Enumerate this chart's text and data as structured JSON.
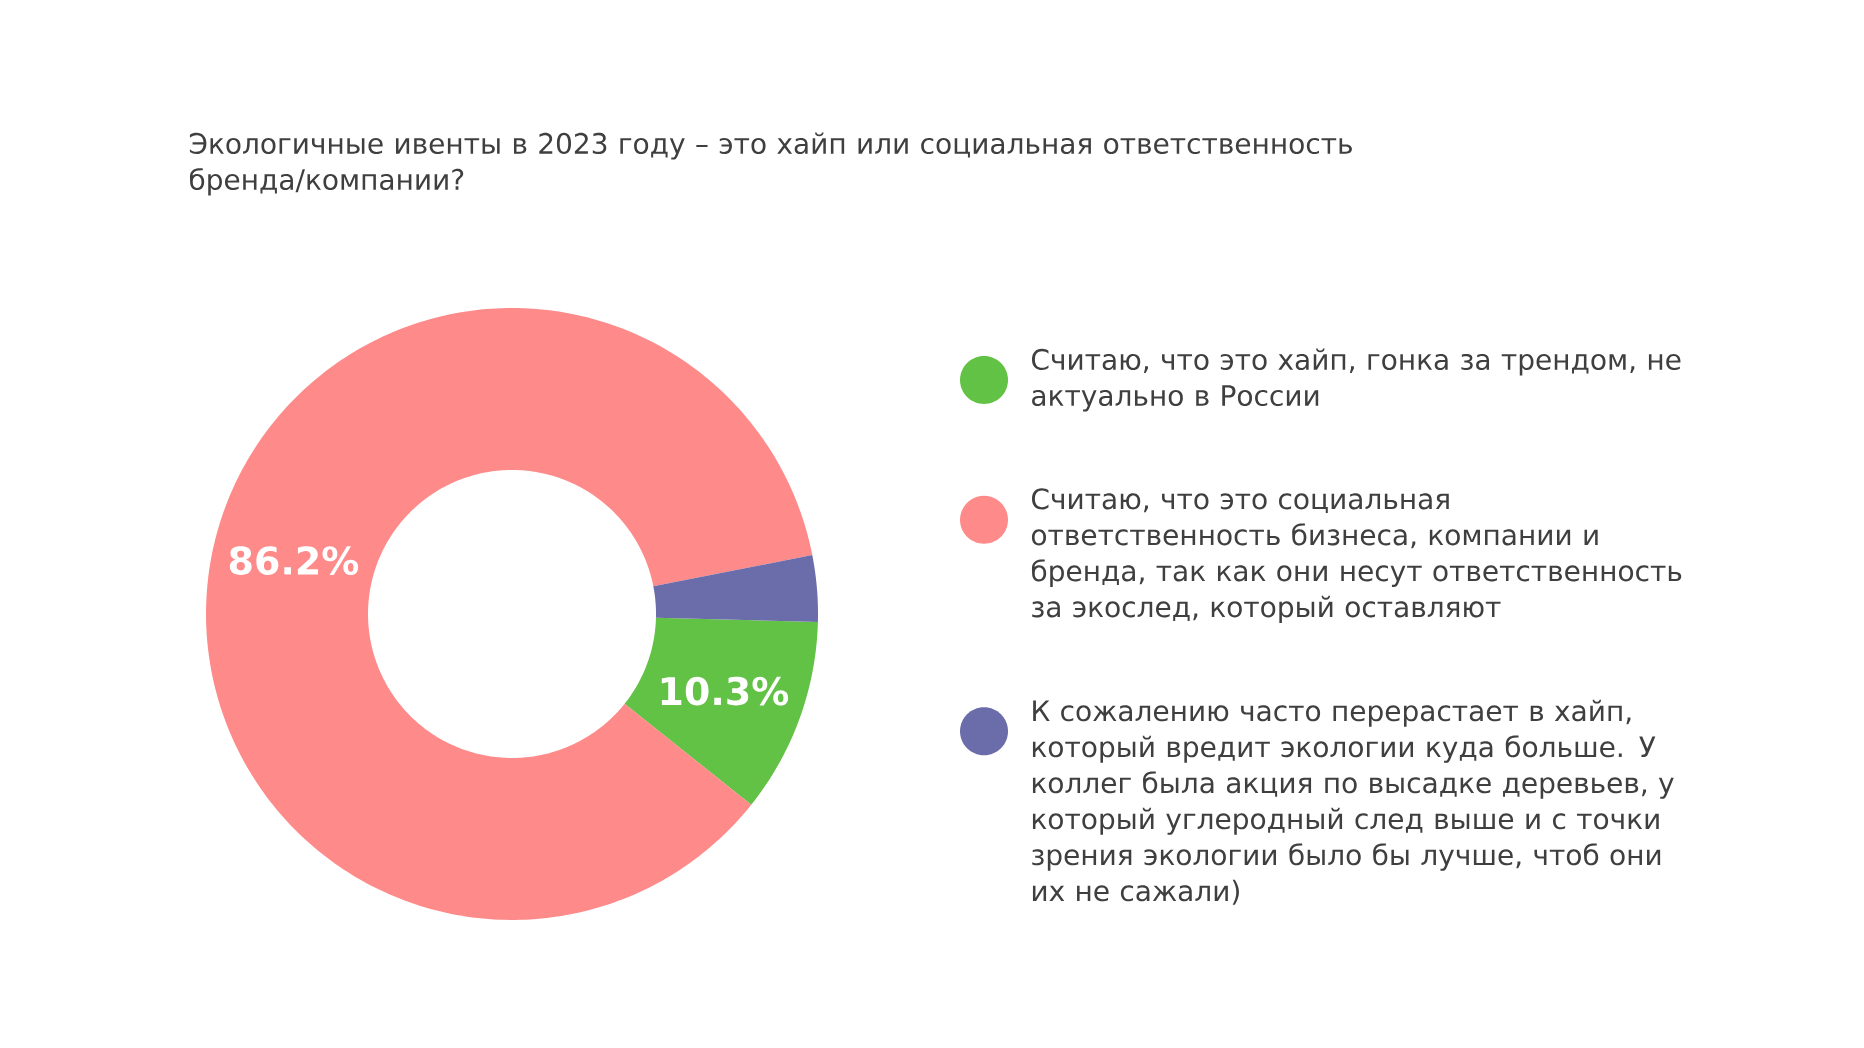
{
  "chart_data": {
    "type": "donut",
    "title": "Экологичные ивенты в 2023 году – это хайп или социальная ответственность бренда/компании?",
    "categories": [
      "Считаю, что это хайп, гонка за трендом, не актуально в России",
      "Считаю, что это социальная ответственность бизнеса, компании и бренда, так как они несут ответственность за экослед, который  оставляют",
      "К сожалению часто перерастает в хайп, который вредит экологии куда больше. У коллег была акция по высадке деревьев, у который углеродный след выше и с точки зрения экологии было бы лучше, чтоб они их не сажали)"
    ],
    "values": [
      10.3,
      86.2,
      3.5
    ],
    "colors": [
      "#62c245",
      "#fe8a8a",
      "#6b6dab"
    ],
    "value_labels": [
      "10.3%",
      "86.2%",
      null
    ],
    "legend": "right"
  }
}
